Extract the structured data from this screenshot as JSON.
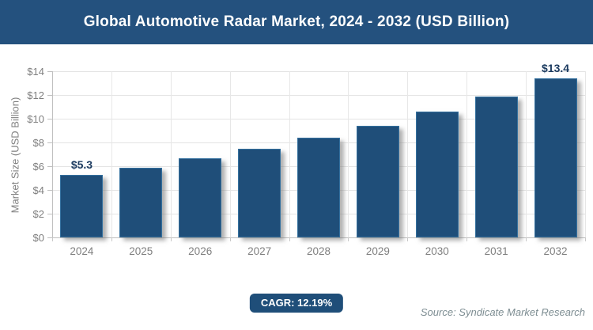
{
  "header": {
    "title": "Global Automotive Radar Market, 2024 - 2032 (USD Billion)"
  },
  "chart_data": {
    "type": "bar",
    "title": "Global Automotive Radar Market, 2024 - 2032 (USD Billion)",
    "categories": [
      "2024",
      "2025",
      "2026",
      "2027",
      "2028",
      "2029",
      "2030",
      "2031",
      "2032"
    ],
    "values": [
      5.3,
      5.9,
      6.7,
      7.5,
      8.4,
      9.4,
      10.6,
      11.9,
      13.4
    ],
    "xlabel": "",
    "ylabel": "Market Size (USD Billion)",
    "ylim": [
      0,
      14
    ],
    "ytick_values": [
      0,
      2,
      4,
      6,
      8,
      10,
      12,
      14
    ],
    "ytick_labels": [
      "$0",
      "$2",
      "$4",
      "$6",
      "$8",
      "$10",
      "$12",
      "$14"
    ],
    "grid": true,
    "legend": "none",
    "bar_color": "#1f4e79",
    "annotations": [
      {
        "category_index": 0,
        "text": "$5.3"
      },
      {
        "category_index": 8,
        "text": "$13.4"
      }
    ]
  },
  "footer": {
    "cagr_label": "CAGR: 12.19%",
    "source": "Source: Syndicate Market Research"
  }
}
